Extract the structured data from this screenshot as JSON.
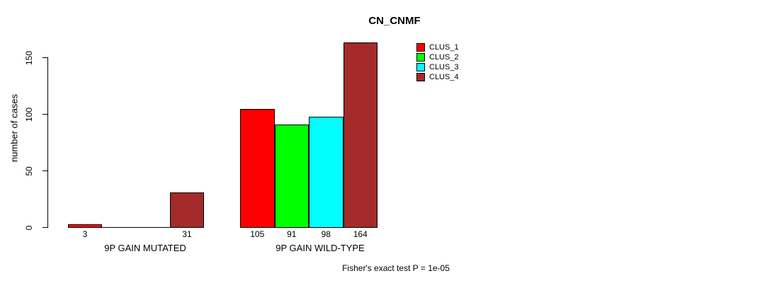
{
  "title": "CN_CNMF",
  "y_axis_label": "number of cases",
  "footnote": "Fisher's exact test P = 1e-05",
  "legend": {
    "items": [
      {
        "label": "CLUS_1",
        "color": "#FF0000"
      },
      {
        "label": "CLUS_2",
        "color": "#00FF00"
      },
      {
        "label": "CLUS_3",
        "color": "#00FFFF"
      },
      {
        "label": "CLUS_4",
        "color": "#A52A2A"
      }
    ]
  },
  "chart_data": {
    "type": "bar",
    "title": "CN_CNMF",
    "xlabel": "",
    "ylabel": "number of cases",
    "ylim": [
      0,
      150
    ],
    "yticks": [
      0,
      50,
      100,
      150
    ],
    "grid": false,
    "legend_position": "top-right",
    "categories": [
      "9P GAIN MUTATED",
      "9P GAIN WILD-TYPE"
    ],
    "series": [
      {
        "name": "CLUS_1",
        "color": "#FF0000",
        "values": [
          3,
          105
        ]
      },
      {
        "name": "CLUS_2",
        "color": "#00FF00",
        "values": [
          0,
          91
        ]
      },
      {
        "name": "CLUS_3",
        "color": "#00FFFF",
        "values": [
          0,
          98
        ]
      },
      {
        "name": "CLUS_4",
        "color": "#A52A2A",
        "values": [
          31,
          164
        ]
      }
    ],
    "bar_value_labels": [
      [
        "3",
        null,
        null,
        "31"
      ],
      [
        "105",
        "91",
        "98",
        "164"
      ]
    ],
    "annotation": "Fisher's exact test P = 1e-05"
  }
}
